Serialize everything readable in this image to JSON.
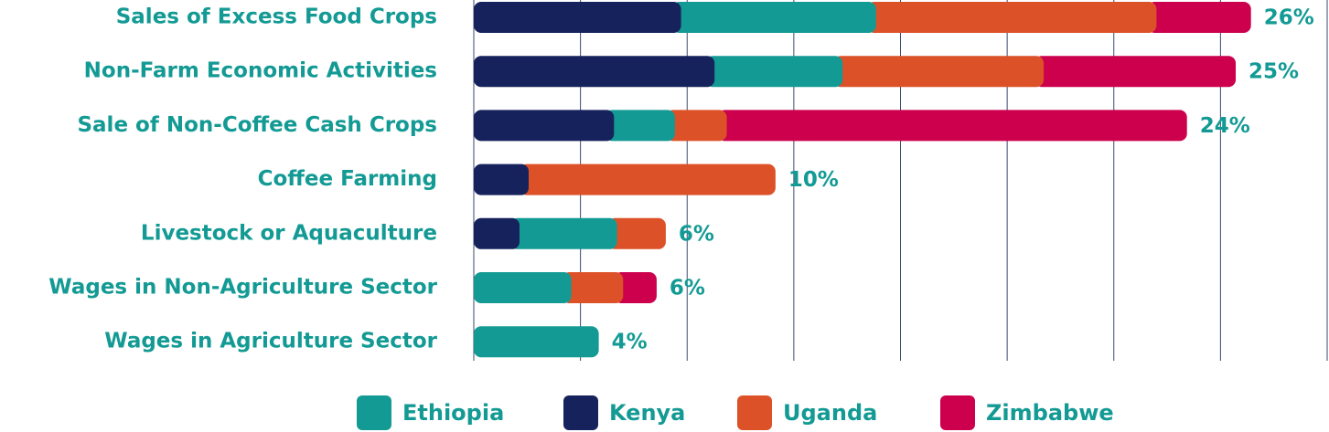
{
  "chart_data": {
    "type": "stacked-bar-horizontal",
    "categories": [
      "Sales of Excess Food Crops",
      "Non-Farm Economic Activities",
      "Sale of Non-Coffee Cash Crops",
      "Coffee Farming",
      "Livestock or Aquaculture",
      "Wages in Non-Agriculture Sector",
      "Wages in Agriculture Sector"
    ],
    "series": [
      {
        "name": "Ethiopia",
        "color": "#139a94",
        "values": [
          6.4,
          4.2,
          2.0,
          0,
          3.2,
          3.2,
          4.1
        ]
      },
      {
        "name": "Kenya",
        "color": "#16225c",
        "values": [
          6.8,
          7.9,
          4.6,
          1.8,
          1.5,
          0,
          0
        ]
      },
      {
        "name": "Uganda",
        "color": "#dc5128",
        "values": [
          9.2,
          6.6,
          1.7,
          8.1,
          1.6,
          1.7,
          0
        ]
      },
      {
        "name": "Zimbabwe",
        "color": "#cc004c",
        "values": [
          3.1,
          6.3,
          15.1,
          0,
          0,
          1.1,
          0
        ]
      }
    ],
    "totals": {
      "values": [
        26,
        25,
        24,
        10,
        6,
        6,
        4
      ],
      "value_labels": [
        "26%",
        "25%",
        "24%",
        "10%",
        "6%",
        "6%",
        "4%"
      ]
    },
    "xlim": [
      0,
      28
    ],
    "xticks": [
      0,
      3.5,
      7,
      10.5,
      14,
      17.5,
      21,
      24.5,
      28
    ],
    "grid": true,
    "legend": "bottom"
  }
}
